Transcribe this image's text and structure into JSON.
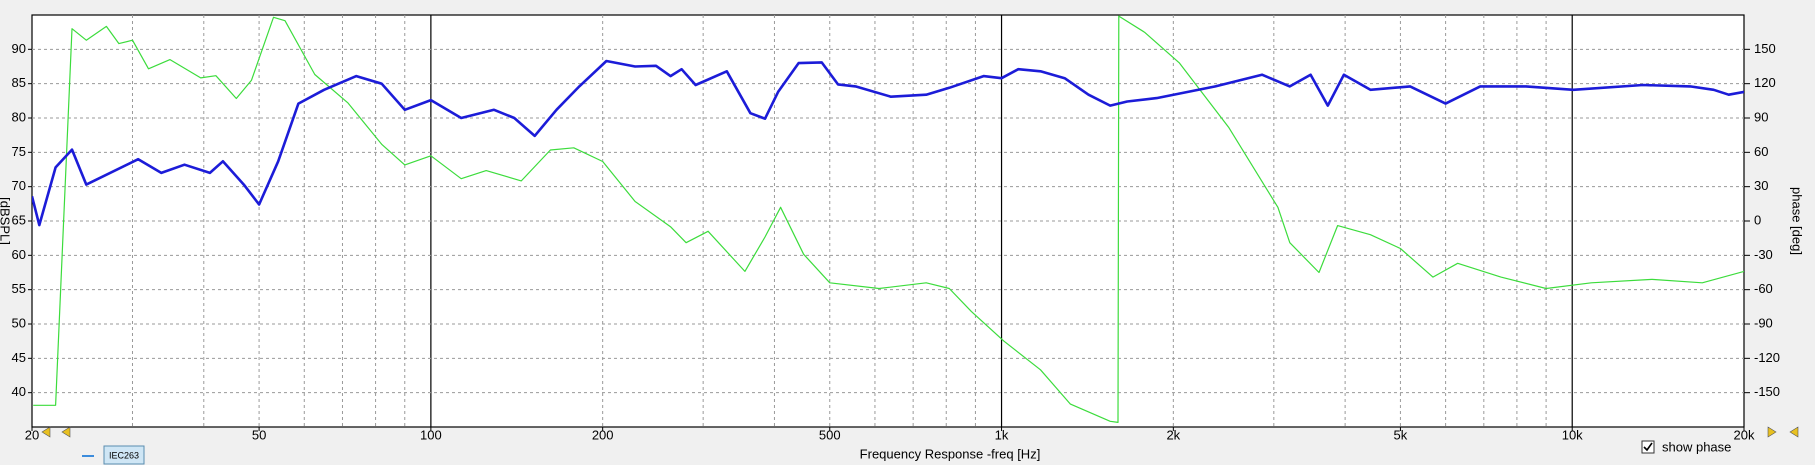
{
  "chart_data": {
    "type": "line",
    "xlabel": "Frequency Response -freq [Hz]",
    "ylabel": "[dBSPL]",
    "y2label": "phase [deg]",
    "checkbox_label": "show phase",
    "legend_item": "IEC263",
    "xlog": true,
    "xlim": [
      20,
      20000
    ],
    "xticks": [
      {
        "value": 20,
        "label": "20"
      },
      {
        "value": 50,
        "label": "50"
      },
      {
        "value": 100,
        "label": "100"
      },
      {
        "value": 200,
        "label": "200"
      },
      {
        "value": 500,
        "label": "500"
      },
      {
        "value": 1000,
        "label": "1k"
      },
      {
        "value": 2000,
        "label": "2k"
      },
      {
        "value": 5000,
        "label": "5k"
      },
      {
        "value": 10000,
        "label": "10k"
      },
      {
        "value": 20000,
        "label": "20k"
      }
    ],
    "xgrid": [
      30,
      40,
      50,
      60,
      70,
      80,
      90,
      100,
      200,
      300,
      400,
      500,
      600,
      700,
      800,
      900,
      1000,
      2000,
      3000,
      4000,
      5000,
      6000,
      7000,
      8000,
      9000,
      10000
    ],
    "ylim": [
      35,
      95
    ],
    "yticks": [
      40,
      45,
      50,
      55,
      60,
      65,
      70,
      75,
      80,
      85,
      90
    ],
    "y2lim": [
      -180,
      180
    ],
    "y2ticks": [
      -150,
      -120,
      -90,
      -60,
      -30,
      0,
      30,
      60,
      90,
      120,
      150
    ],
    "grid": true,
    "series": [
      {
        "color": "#1c1cd8",
        "width": 2.6,
        "x": [
          20,
          20.6,
          22,
          23.5,
          24.9,
          30.7,
          33.7,
          37,
          41,
          43.2,
          47,
          50,
          54,
          58.6,
          65,
          74,
          82,
          90,
          100,
          113,
          129,
          140,
          152,
          166,
          182,
          203,
          228,
          248,
          263,
          275,
          291,
          330,
          363,
          385,
          406,
          441,
          484,
          517,
          555,
          640,
          738,
          810,
          930,
          1000,
          1070,
          1170,
          1290,
          1420,
          1550,
          1660,
          1870,
          2370,
          2860,
          3200,
          3480,
          3730,
          3980,
          4430,
          5200,
          6000,
          6900,
          8300,
          10050,
          13300,
          16100,
          17700,
          18800,
          20000
        ],
        "values": [
          68.6,
          64.4,
          72.8,
          75.4,
          70.3,
          74,
          72,
          73.2,
          72,
          73.7,
          70.3,
          67.4,
          73.7,
          82.1,
          84.1,
          86.1,
          85,
          81.2,
          82.6,
          80,
          81.2,
          80,
          77.4,
          81.2,
          84.6,
          88.3,
          87.5,
          87.6,
          86.1,
          87.1,
          84.8,
          86.8,
          80.7,
          79.9,
          83.8,
          88,
          88.1,
          84.9,
          84.6,
          83.1,
          83.4,
          84.4,
          86.1,
          85.8,
          87.1,
          86.8,
          85.8,
          83.4,
          81.8,
          82.4,
          82.9,
          84.6,
          86.3,
          84.6,
          86.3,
          81.8,
          86.3,
          84.1,
          84.6,
          82.1,
          84.6,
          84.6,
          84.1,
          84.8,
          84.6,
          84.1,
          83.4,
          83.8
        ]
      },
      {
        "color": "#3cdc3c",
        "width": 1.2,
        "axis": "y2",
        "x": [
          20.1,
          22,
          23.5,
          24.9,
          27,
          28.4,
          30,
          32,
          34.9,
          39.5,
          42,
          45.6,
          48.5,
          53,
          55.5,
          62.6,
          71.6,
          82,
          90,
          100,
          113,
          125,
          144,
          162,
          178,
          200,
          228,
          263,
          280,
          306,
          355,
          385,
          410,
          450,
          500,
          610,
          738,
          810,
          885,
          1010,
          1170,
          1320,
          1550,
          1600,
          1605,
          1780,
          2050,
          2500,
          3050,
          3200,
          3600,
          3880,
          4430,
          5000,
          5700,
          6300,
          7500,
          9000,
          10800,
          13800,
          16900,
          20000
        ],
        "values": [
          -161,
          -161,
          168,
          158,
          170,
          155,
          158,
          133,
          141,
          125,
          127,
          107,
          123,
          178,
          175,
          128,
          103,
          67,
          49,
          57,
          37,
          44,
          35,
          62,
          64,
          52,
          17,
          -5,
          -19,
          -9,
          -44,
          -14,
          12,
          -29,
          -54,
          -59,
          -54,
          -59,
          -79,
          -105,
          -130,
          -160,
          -175,
          -176,
          179,
          165,
          138,
          82,
          12,
          -19,
          -45,
          -4,
          -12,
          -24,
          -49,
          -37,
          -49,
          -59,
          -54,
          -51,
          -54,
          -44
        ]
      }
    ]
  }
}
